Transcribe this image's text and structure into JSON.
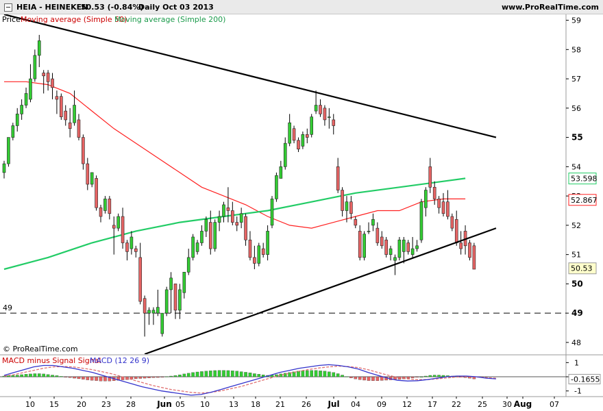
{
  "header": {
    "ticker": "HEIA - HEINEKEN",
    "price_change": "50.53  (-0.84%)",
    "period": "Daily  Oct 03 2013",
    "site": "www.ProRealTime.com"
  },
  "price_panel": {
    "legend_prefix": "Price",
    "legend_ma50": "Moving average (Simple 50)",
    "legend_ma200": "Moving average (Simple 200)",
    "y_ticks": [
      "59",
      "58",
      "57",
      "56",
      "55",
      "54",
      "53",
      "52",
      "51",
      "50",
      "49",
      "48"
    ],
    "y_bold_ticks": [
      "55",
      "50",
      "49"
    ],
    "dashed_level": "49",
    "badge_ma200": "53.598",
    "badge_ma50": "52.867",
    "badge_price": "50.53",
    "copyright": "© ProRealTime.com",
    "colors": {
      "up": "#33cc33",
      "down": "#e66464",
      "ma50": "#ff2020",
      "ma200": "#22cc66",
      "trendline": "#000000",
      "badge_price_bg": "#ffffcc"
    }
  },
  "macd_panel": {
    "legend_hist": "MACD minus Signal Signal",
    "legend_macd": "MACD (12 26 9)",
    "y_ticks": [
      "1",
      "0",
      "-1"
    ],
    "badge_value": "-0.1655",
    "colors": {
      "macd": "#3333cc",
      "signal": "#e07070",
      "hist_up": "#33cc33",
      "hist_down": "#e66464"
    }
  },
  "x_axis": {
    "labels": [
      "10",
      "15",
      "20",
      "23",
      "28",
      "Jun",
      "05",
      "10",
      "13",
      "18",
      "21",
      "26",
      "Jul",
      "04",
      "09",
      "12",
      "17",
      "22",
      "25",
      "30",
      "Aug",
      "07"
    ],
    "bold_labels": [
      "Jun",
      "Jul",
      "Aug"
    ]
  },
  "chart_data": {
    "type": "candlestick",
    "title": "HEIA - HEINEKEN Daily",
    "y_range": [
      47.6,
      59.2
    ],
    "candles": [
      {
        "o": 53.8,
        "h": 54.2,
        "l": 53.6,
        "c": 54.1
      },
      {
        "o": 54.1,
        "h": 55.0,
        "l": 54.0,
        "c": 55.0
      },
      {
        "o": 55.0,
        "h": 55.5,
        "l": 54.9,
        "c": 55.4
      },
      {
        "o": 55.4,
        "h": 56.0,
        "l": 55.2,
        "c": 55.8
      },
      {
        "o": 55.8,
        "h": 56.3,
        "l": 55.6,
        "c": 56.1
      },
      {
        "o": 56.1,
        "h": 56.7,
        "l": 56.0,
        "c": 56.5
      },
      {
        "o": 56.3,
        "h": 57.5,
        "l": 56.2,
        "c": 57.0
      },
      {
        "o": 57.0,
        "h": 58.0,
        "l": 56.9,
        "c": 57.8
      },
      {
        "o": 57.8,
        "h": 58.5,
        "l": 57.4,
        "c": 58.3
      },
      {
        "o": 57.2,
        "h": 57.3,
        "l": 56.5,
        "c": 57.1
      },
      {
        "o": 57.2,
        "h": 57.3,
        "l": 56.6,
        "c": 56.9
      },
      {
        "o": 57.0,
        "h": 57.2,
        "l": 56.3,
        "c": 56.7
      },
      {
        "o": 56.4,
        "h": 56.6,
        "l": 55.8,
        "c": 56.3
      },
      {
        "o": 56.4,
        "h": 56.5,
        "l": 55.6,
        "c": 55.7
      },
      {
        "o": 55.9,
        "h": 56.1,
        "l": 55.4,
        "c": 55.6
      },
      {
        "o": 55.5,
        "h": 56.0,
        "l": 55.0,
        "c": 55.3
      },
      {
        "o": 55.5,
        "h": 56.6,
        "l": 55.4,
        "c": 56.1
      },
      {
        "o": 55.6,
        "h": 55.8,
        "l": 54.9,
        "c": 55.0
      },
      {
        "o": 55.0,
        "h": 55.1,
        "l": 53.9,
        "c": 54.1
      },
      {
        "o": 54.1,
        "h": 54.3,
        "l": 53.2,
        "c": 53.4
      },
      {
        "o": 53.4,
        "h": 53.8,
        "l": 53.3,
        "c": 53.8
      },
      {
        "o": 53.6,
        "h": 53.7,
        "l": 52.5,
        "c": 52.6
      },
      {
        "o": 52.6,
        "h": 52.7,
        "l": 52.1,
        "c": 52.3
      },
      {
        "o": 52.5,
        "h": 53.0,
        "l": 52.4,
        "c": 52.9
      },
      {
        "o": 52.9,
        "h": 53.0,
        "l": 52.2,
        "c": 52.4
      },
      {
        "o": 52.0,
        "h": 52.3,
        "l": 51.0,
        "c": 51.9
      },
      {
        "o": 51.9,
        "h": 52.4,
        "l": 51.8,
        "c": 52.3
      },
      {
        "o": 52.3,
        "h": 52.6,
        "l": 51.2,
        "c": 51.4
      },
      {
        "o": 51.4,
        "h": 51.5,
        "l": 50.8,
        "c": 51.1
      },
      {
        "o": 51.2,
        "h": 51.8,
        "l": 51.0,
        "c": 51.6
      },
      {
        "o": 51.2,
        "h": 51.3,
        "l": 50.9,
        "c": 51.1
      },
      {
        "o": 50.9,
        "h": 51.4,
        "l": 49.3,
        "c": 49.4
      },
      {
        "o": 49.5,
        "h": 49.6,
        "l": 48.2,
        "c": 49.0
      },
      {
        "o": 49.0,
        "h": 49.2,
        "l": 48.6,
        "c": 49.1
      },
      {
        "o": 49.0,
        "h": 49.2,
        "l": 48.6,
        "c": 49.1
      },
      {
        "o": 49.0,
        "h": 49.8,
        "l": 48.9,
        "c": 49.2
      },
      {
        "o": 48.3,
        "h": 49.0,
        "l": 48.2,
        "c": 49.0
      },
      {
        "o": 49.0,
        "h": 49.9,
        "l": 48.9,
        "c": 49.8
      },
      {
        "o": 49.8,
        "h": 50.4,
        "l": 49.0,
        "c": 50.2
      },
      {
        "o": 50.0,
        "h": 50.0,
        "l": 48.8,
        "c": 49.1
      },
      {
        "o": 49.1,
        "h": 50.0,
        "l": 48.8,
        "c": 49.8
      },
      {
        "o": 49.7,
        "h": 50.3,
        "l": 49.5,
        "c": 50.4
      },
      {
        "o": 50.4,
        "h": 51.2,
        "l": 50.3,
        "c": 50.9
      },
      {
        "o": 50.9,
        "h": 51.7,
        "l": 50.8,
        "c": 51.6
      },
      {
        "o": 51.1,
        "h": 51.5,
        "l": 51.0,
        "c": 51.4
      },
      {
        "o": 51.4,
        "h": 52.0,
        "l": 51.3,
        "c": 51.8
      },
      {
        "o": 51.8,
        "h": 52.3,
        "l": 51.6,
        "c": 52.2
      },
      {
        "o": 52.1,
        "h": 52.5,
        "l": 51.0,
        "c": 51.2
      },
      {
        "o": 51.2,
        "h": 52.2,
        "l": 51.1,
        "c": 52.1
      },
      {
        "o": 52.1,
        "h": 52.5,
        "l": 51.8,
        "c": 52.3
      },
      {
        "o": 52.3,
        "h": 52.8,
        "l": 52.1,
        "c": 52.7
      },
      {
        "o": 52.6,
        "h": 53.3,
        "l": 52.1,
        "c": 52.5
      },
      {
        "o": 52.5,
        "h": 52.8,
        "l": 52.0,
        "c": 52.1
      },
      {
        "o": 52.1,
        "h": 52.3,
        "l": 51.8,
        "c": 52.0
      },
      {
        "o": 52.1,
        "h": 52.6,
        "l": 51.9,
        "c": 52.4
      },
      {
        "o": 52.3,
        "h": 52.4,
        "l": 51.3,
        "c": 51.5
      },
      {
        "o": 51.5,
        "h": 51.8,
        "l": 50.8,
        "c": 50.9
      },
      {
        "o": 50.9,
        "h": 51.3,
        "l": 50.5,
        "c": 50.7
      },
      {
        "o": 50.7,
        "h": 51.4,
        "l": 50.6,
        "c": 51.3
      },
      {
        "o": 51.2,
        "h": 51.4,
        "l": 50.9,
        "c": 51.0
      },
      {
        "o": 51.0,
        "h": 52.0,
        "l": 50.8,
        "c": 51.8
      },
      {
        "o": 52.0,
        "h": 53.0,
        "l": 51.9,
        "c": 52.9
      },
      {
        "o": 52.9,
        "h": 53.8,
        "l": 52.8,
        "c": 53.7
      },
      {
        "o": 53.6,
        "h": 54.2,
        "l": 53.6,
        "c": 54.0
      },
      {
        "o": 54.0,
        "h": 55.0,
        "l": 53.9,
        "c": 54.8
      },
      {
        "o": 54.8,
        "h": 55.8,
        "l": 54.7,
        "c": 55.5
      },
      {
        "o": 55.3,
        "h": 55.4,
        "l": 54.8,
        "c": 54.9
      },
      {
        "o": 54.9,
        "h": 55.0,
        "l": 54.5,
        "c": 54.6
      },
      {
        "o": 54.7,
        "h": 55.2,
        "l": 54.6,
        "c": 55.1
      },
      {
        "o": 55.1,
        "h": 55.3,
        "l": 54.8,
        "c": 55.0
      },
      {
        "o": 55.1,
        "h": 55.8,
        "l": 55.0,
        "c": 55.7
      },
      {
        "o": 55.9,
        "h": 56.6,
        "l": 55.8,
        "c": 56.1
      },
      {
        "o": 56.1,
        "h": 56.3,
        "l": 55.7,
        "c": 55.8
      },
      {
        "o": 56.0,
        "h": 56.1,
        "l": 55.4,
        "c": 55.6
      },
      {
        "o": 55.7,
        "h": 56.0,
        "l": 55.3,
        "c": 55.7
      },
      {
        "o": 55.6,
        "h": 55.8,
        "l": 55.1,
        "c": 55.4
      },
      {
        "o": 54.0,
        "h": 54.3,
        "l": 53.1,
        "c": 53.2
      },
      {
        "o": 53.2,
        "h": 53.3,
        "l": 52.3,
        "c": 52.5
      },
      {
        "o": 52.5,
        "h": 53.0,
        "l": 52.1,
        "c": 52.8
      },
      {
        "o": 52.8,
        "h": 53.0,
        "l": 52.2,
        "c": 52.4
      },
      {
        "o": 52.2,
        "h": 52.3,
        "l": 51.9,
        "c": 52.0
      },
      {
        "o": 51.8,
        "h": 52.0,
        "l": 50.8,
        "c": 50.9
      },
      {
        "o": 50.9,
        "h": 51.8,
        "l": 50.8,
        "c": 51.7
      },
      {
        "o": 51.8,
        "h": 52.1,
        "l": 51.7,
        "c": 51.8
      },
      {
        "o": 52.0,
        "h": 52.4,
        "l": 51.8,
        "c": 52.2
      },
      {
        "o": 51.9,
        "h": 52.1,
        "l": 51.3,
        "c": 51.4
      },
      {
        "o": 51.6,
        "h": 51.8,
        "l": 51.2,
        "c": 51.3
      },
      {
        "o": 51.5,
        "h": 51.6,
        "l": 50.9,
        "c": 51.0
      },
      {
        "o": 51.0,
        "h": 51.3,
        "l": 50.8,
        "c": 51.2
      },
      {
        "o": 50.8,
        "h": 51.0,
        "l": 50.3,
        "c": 50.9
      },
      {
        "o": 50.9,
        "h": 51.6,
        "l": 50.8,
        "c": 51.5
      },
      {
        "o": 51.1,
        "h": 51.6,
        "l": 50.7,
        "c": 51.5
      },
      {
        "o": 51.4,
        "h": 51.5,
        "l": 51.0,
        "c": 51.1
      },
      {
        "o": 51.0,
        "h": 51.6,
        "l": 50.9,
        "c": 51.2
      },
      {
        "o": 51.2,
        "h": 51.5,
        "l": 51.1,
        "c": 51.3
      },
      {
        "o": 51.5,
        "h": 52.9,
        "l": 51.4,
        "c": 52.8
      },
      {
        "o": 52.6,
        "h": 53.3,
        "l": 52.3,
        "c": 53.2
      },
      {
        "o": 54.0,
        "h": 54.3,
        "l": 53.1,
        "c": 53.3
      },
      {
        "o": 53.3,
        "h": 53.5,
        "l": 52.7,
        "c": 52.9
      },
      {
        "o": 52.9,
        "h": 53.0,
        "l": 52.4,
        "c": 52.6
      },
      {
        "o": 52.8,
        "h": 53.1,
        "l": 52.3,
        "c": 52.4
      },
      {
        "o": 52.8,
        "h": 53.2,
        "l": 52.2,
        "c": 52.3
      },
      {
        "o": 52.3,
        "h": 52.4,
        "l": 51.8,
        "c": 51.9
      },
      {
        "o": 52.2,
        "h": 52.5,
        "l": 51.3,
        "c": 51.4
      },
      {
        "o": 51.4,
        "h": 51.8,
        "l": 51.0,
        "c": 51.2
      },
      {
        "o": 51.8,
        "h": 52.0,
        "l": 51.0,
        "c": 51.3
      },
      {
        "o": 51.4,
        "h": 51.5,
        "l": 50.8,
        "c": 50.9
      },
      {
        "o": 51.3,
        "h": 51.4,
        "l": 50.5,
        "c": 50.5
      }
    ],
    "ma50": [
      [
        0,
        56.9
      ],
      [
        5,
        56.9
      ],
      [
        10,
        56.8
      ],
      [
        15,
        56.5
      ],
      [
        20,
        55.9
      ],
      [
        25,
        55.3
      ],
      [
        30,
        54.8
      ],
      [
        35,
        54.3
      ],
      [
        40,
        53.8
      ],
      [
        45,
        53.3
      ],
      [
        50,
        53.0
      ],
      [
        55,
        52.7
      ],
      [
        60,
        52.3
      ],
      [
        65,
        52.0
      ],
      [
        70,
        51.9
      ],
      [
        75,
        52.1
      ],
      [
        80,
        52.3
      ],
      [
        85,
        52.5
      ],
      [
        90,
        52.5
      ],
      [
        95,
        52.8
      ],
      [
        100,
        52.9
      ],
      [
        105,
        52.9
      ]
    ],
    "ma200": [
      [
        0,
        50.5
      ],
      [
        10,
        50.9
      ],
      [
        20,
        51.4
      ],
      [
        30,
        51.8
      ],
      [
        40,
        52.1
      ],
      [
        50,
        52.3
      ],
      [
        60,
        52.5
      ],
      [
        70,
        52.8
      ],
      [
        80,
        53.1
      ],
      [
        90,
        53.3
      ],
      [
        100,
        53.5
      ],
      [
        105,
        53.6
      ]
    ],
    "trendlines": [
      {
        "from": [
          0,
          59.2
        ],
        "to": [
          112,
          55.0
        ]
      },
      {
        "from": [
          32,
          47.6
        ],
        "to": [
          112,
          51.9
        ]
      }
    ],
    "macd_range": [
      -1.4,
      1.5
    ],
    "macd_hist": [
      0.05,
      0.08,
      0.1,
      0.12,
      0.15,
      0.18,
      0.2,
      0.22,
      0.22,
      0.2,
      0.16,
      0.12,
      0.08,
      0.03,
      -0.02,
      -0.06,
      -0.1,
      -0.14,
      -0.18,
      -0.22,
      -0.25,
      -0.27,
      -0.3,
      -0.3,
      -0.3,
      -0.28,
      -0.25,
      -0.22,
      -0.2,
      -0.17,
      -0.14,
      -0.12,
      -0.1,
      -0.08,
      -0.06,
      -0.05,
      -0.02,
      0.02,
      0.05,
      0.09,
      0.14,
      0.2,
      0.25,
      0.3,
      0.34,
      0.37,
      0.4,
      0.42,
      0.44,
      0.45,
      0.45,
      0.44,
      0.42,
      0.4,
      0.36,
      0.32,
      0.28,
      0.22,
      0.18,
      0.14,
      0.1,
      0.12,
      0.15,
      0.2,
      0.25,
      0.3,
      0.35,
      0.4,
      0.42,
      0.44,
      0.45,
      0.45,
      0.42,
      0.4,
      0.35,
      0.3,
      0.22,
      0.12,
      0.02,
      -0.08,
      -0.15,
      -0.2,
      -0.24,
      -0.27,
      -0.28,
      -0.28,
      -0.26,
      -0.24,
      -0.22,
      -0.2,
      -0.18,
      -0.15,
      -0.12,
      -0.08,
      -0.04,
      0.0,
      0.05,
      0.1,
      0.12,
      0.12,
      0.1,
      0.08,
      0.05,
      0.02,
      -0.02,
      -0.06,
      -0.1,
      -0.15
    ],
    "macd_line": [
      0.1,
      0.3,
      0.5,
      0.7,
      0.8,
      0.8,
      0.7,
      0.6,
      0.45,
      0.3,
      0.1,
      -0.1,
      -0.3,
      -0.5,
      -0.7,
      -0.85,
      -1.0,
      -1.1,
      -1.2,
      -1.3,
      -1.25,
      -1.1,
      -0.9,
      -0.7,
      -0.5,
      -0.3,
      -0.1,
      0.1,
      0.3,
      0.45,
      0.6,
      0.7,
      0.8,
      0.85,
      0.8,
      0.7,
      0.55,
      0.3,
      0.1,
      -0.1,
      -0.25,
      -0.3,
      -0.28,
      -0.2,
      -0.1,
      0.0,
      0.05,
      0.05,
      0.0,
      -0.1,
      -0.15
    ],
    "signal_line": [
      0.05,
      0.15,
      0.3,
      0.45,
      0.6,
      0.7,
      0.72,
      0.7,
      0.6,
      0.5,
      0.35,
      0.2,
      0.0,
      -0.2,
      -0.4,
      -0.6,
      -0.75,
      -0.9,
      -1.0,
      -1.1,
      -1.15,
      -1.1,
      -1.0,
      -0.85,
      -0.7,
      -0.5,
      -0.3,
      -0.1,
      0.1,
      0.25,
      0.4,
      0.52,
      0.62,
      0.7,
      0.75,
      0.72,
      0.65,
      0.5,
      0.3,
      0.12,
      -0.05,
      -0.15,
      -0.2,
      -0.2,
      -0.15,
      -0.08,
      -0.02,
      0.0,
      -0.02,
      -0.06,
      -0.1
    ]
  }
}
